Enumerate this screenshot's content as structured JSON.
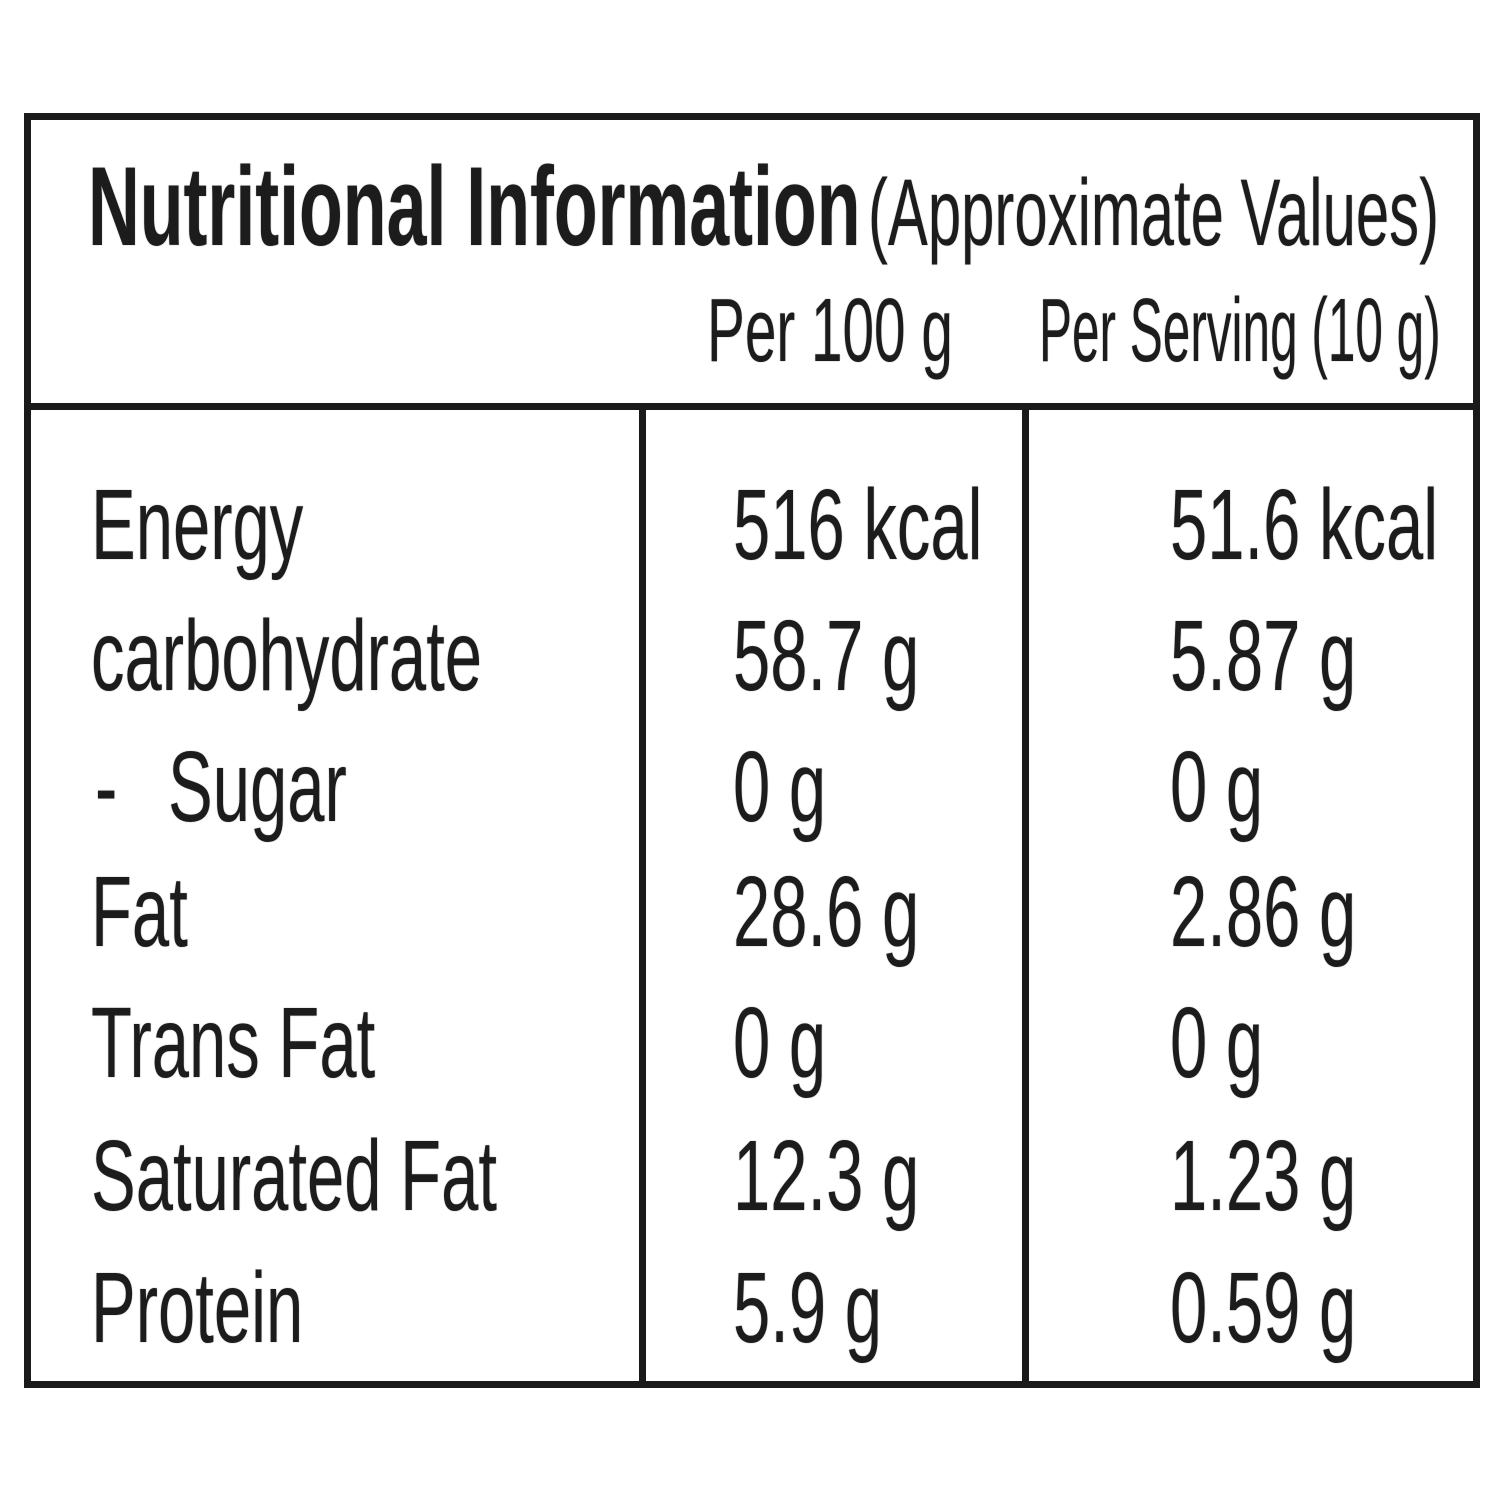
{
  "label": {
    "title": "Nutritional Information",
    "subtitle": "(Approximate Values)",
    "columns": {
      "per_100g": "Per 100 g",
      "per_serving": "Per Serving (10 g)"
    },
    "rows": [
      {
        "name": "Energy",
        "prefix": "",
        "per_100g": "516 kcal",
        "per_serving": "51.6 kcal"
      },
      {
        "name": "carbohydrate",
        "prefix": "",
        "per_100g": "58.7 g",
        "per_serving": "5.87 g"
      },
      {
        "name": "Sugar",
        "prefix": "-",
        "per_100g": "0 g",
        "per_serving": "0 g"
      },
      {
        "name": "Fat",
        "prefix": "",
        "per_100g": "28.6 g",
        "per_serving": "2.86 g"
      },
      {
        "name": "Trans Fat",
        "prefix": "",
        "per_100g": "0 g",
        "per_serving": "0 g"
      },
      {
        "name": "Saturated Fat",
        "prefix": "",
        "per_100g": "12.3 g",
        "per_serving": "1.23 g"
      },
      {
        "name": "Protein",
        "prefix": "",
        "per_100g": "5.9 g",
        "per_serving": "0.59 g"
      }
    ],
    "colors": {
      "border": "#1a1a1a",
      "text": "#1c1c1c",
      "background": "#ffffff"
    }
  }
}
